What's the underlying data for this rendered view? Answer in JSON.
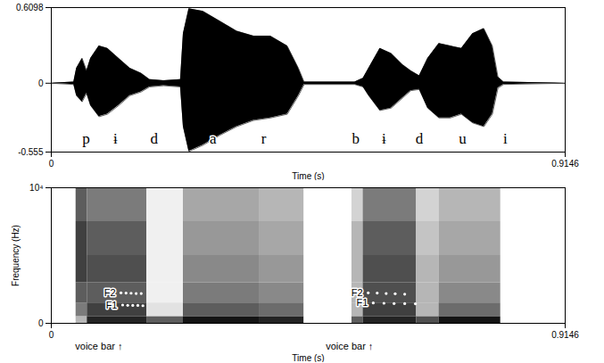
{
  "chart_data": [
    {
      "type": "area",
      "x_label": "Time (s)",
      "xlim": [
        0,
        0.9146
      ],
      "xticks": [
        0,
        0.9146
      ],
      "ylim": [
        -0.555,
        0.6098
      ],
      "yticks": [
        -0.555,
        0,
        0.6098
      ],
      "color": "#000000",
      "x": [
        0,
        0.04,
        0.045,
        0.055,
        0.063,
        0.07,
        0.085,
        0.1,
        0.12,
        0.14,
        0.16,
        0.175,
        0.2,
        0.23,
        0.235,
        0.245,
        0.27,
        0.3,
        0.33,
        0.36,
        0.39,
        0.42,
        0.44,
        0.45,
        0.54,
        0.555,
        0.565,
        0.585,
        0.605,
        0.625,
        0.64,
        0.655,
        0.67,
        0.69,
        0.71,
        0.73,
        0.75,
        0.77,
        0.785,
        0.795,
        0.805,
        0.9146
      ],
      "upper": [
        0,
        0.01,
        0.12,
        0.2,
        0.1,
        0.2,
        0.3,
        0.28,
        0.2,
        0.12,
        0.08,
        0.03,
        0.02,
        0.03,
        0.4,
        0.6,
        0.58,
        0.5,
        0.42,
        0.38,
        0.38,
        0.3,
        0.12,
        0.01,
        0.01,
        0.04,
        0.12,
        0.28,
        0.24,
        0.15,
        0.1,
        0.06,
        0.2,
        0.32,
        0.3,
        0.28,
        0.4,
        0.44,
        0.3,
        0.05,
        0.01,
        0
      ],
      "lower": [
        0,
        -0.01,
        -0.1,
        -0.15,
        -0.08,
        -0.18,
        -0.27,
        -0.25,
        -0.18,
        -0.1,
        -0.07,
        -0.03,
        -0.02,
        -0.03,
        -0.35,
        -0.55,
        -0.5,
        -0.42,
        -0.35,
        -0.3,
        -0.28,
        -0.25,
        -0.1,
        -0.01,
        -0.01,
        -0.03,
        -0.1,
        -0.22,
        -0.2,
        -0.12,
        -0.06,
        -0.05,
        -0.2,
        -0.28,
        -0.28,
        -0.25,
        -0.32,
        -0.35,
        -0.25,
        -0.04,
        -0.01,
        0
      ],
      "annotations": [
        {
          "text": "p",
          "x": 0.062,
          "y": -0.45
        },
        {
          "text": "ɨ",
          "x": 0.114,
          "y": -0.45
        },
        {
          "text": "d",
          "x": 0.183,
          "y": -0.45
        },
        {
          "text": "a",
          "x": 0.288,
          "y": -0.45
        },
        {
          "text": "r",
          "x": 0.378,
          "y": -0.45
        },
        {
          "text": "b",
          "x": 0.542,
          "y": -0.45
        },
        {
          "text": "ɨ",
          "x": 0.592,
          "y": -0.45
        },
        {
          "text": "d",
          "x": 0.655,
          "y": -0.45
        },
        {
          "text": "u",
          "x": 0.732,
          "y": -0.45
        },
        {
          "text": "i",
          "x": 0.808,
          "y": -0.45
        }
      ]
    },
    {
      "type": "heatmap",
      "x_label": "Time (s)",
      "y_label": "Frequency (Hz)",
      "xlim": [
        0,
        0.9146
      ],
      "xticks": [
        0,
        0.9146
      ],
      "ylim": [
        0,
        10000
      ],
      "yticks": [
        0,
        {
          "value": 10000,
          "label": "10⁴"
        }
      ],
      "time_edges": [
        0,
        0.044,
        0.064,
        0.17,
        0.235,
        0.37,
        0.45,
        0.535,
        0.555,
        0.65,
        0.69,
        0.8,
        0.9146
      ],
      "frequency_edges": [
        0,
        500,
        1500,
        3000,
        5000,
        7500,
        10000
      ],
      "cells": [
        [
          0.05,
          0.05,
          0.05,
          0.05,
          0.05,
          0.05
        ],
        [
          0.3,
          0.5,
          0.6,
          0.7,
          0.7,
          0.6
        ],
        [
          0.8,
          0.7,
          0.6,
          0.65,
          0.6,
          0.5
        ],
        [
          0.6,
          0.15,
          0.1,
          0.1,
          0.1,
          0.1
        ],
        [
          0.85,
          0.6,
          0.5,
          0.45,
          0.4,
          0.35
        ],
        [
          0.8,
          0.55,
          0.45,
          0.4,
          0.35,
          0.3
        ],
        [
          0.05,
          0.05,
          0.05,
          0.05,
          0.05,
          0.05
        ],
        [
          0.6,
          0.3,
          0.3,
          0.3,
          0.3,
          0.2
        ],
        [
          0.8,
          0.7,
          0.65,
          0.65,
          0.6,
          0.5
        ],
        [
          0.65,
          0.3,
          0.3,
          0.3,
          0.25,
          0.2
        ],
        [
          0.85,
          0.55,
          0.45,
          0.4,
          0.35,
          0.3
        ],
        [
          0.05,
          0.05,
          0.05,
          0.05,
          0.05,
          0.05
        ]
      ],
      "series": [
        {
          "name": "F2",
          "color": "#ffffff",
          "marker": "dot",
          "x": [
            0.124,
            0.133,
            0.142,
            0.151,
            0.16
          ],
          "values": [
            2250,
            2230,
            2220,
            2200,
            2200
          ]
        },
        {
          "name": "F1",
          "color": "#ffffff",
          "marker": "dot",
          "x": [
            0.127,
            0.136,
            0.145,
            0.154,
            0.163
          ],
          "values": [
            1350,
            1330,
            1320,
            1320,
            1300
          ]
        },
        {
          "name": "F2",
          "color": "#ffffff",
          "marker": "dot",
          "x": [
            0.564,
            0.58,
            0.596,
            0.612,
            0.629
          ],
          "values": [
            2250,
            2230,
            2200,
            2180,
            2150
          ]
        },
        {
          "name": "F1",
          "color": "#ffffff",
          "marker": "dot",
          "x": [
            0.573,
            0.592,
            0.61,
            0.629,
            0.648
          ],
          "values": [
            1500,
            1480,
            1460,
            1450,
            1440
          ]
        }
      ],
      "annotations": [
        {
          "text": "voice bar ↑",
          "x": 0.127
        },
        {
          "text": "voice bar ↑",
          "x": 0.573
        }
      ]
    }
  ]
}
